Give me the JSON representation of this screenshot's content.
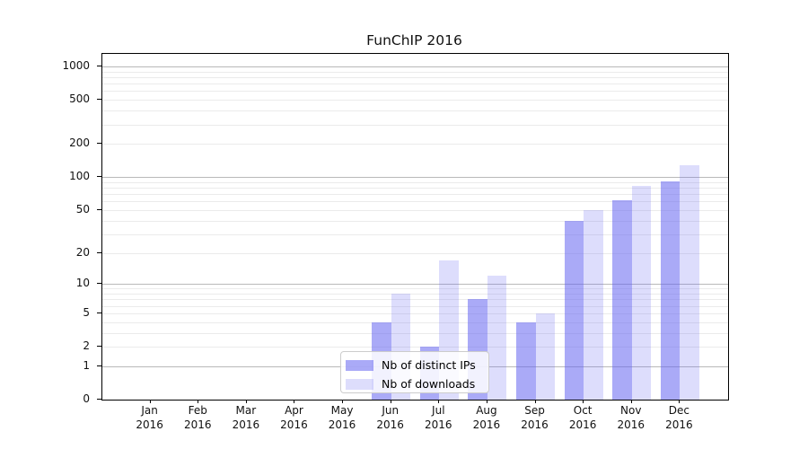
{
  "chart_data": {
    "type": "bar",
    "title": "FunChIP 2016",
    "categories": [
      "Jan",
      "Feb",
      "Mar",
      "Apr",
      "May",
      "Jun",
      "Jul",
      "Aug",
      "Sep",
      "Oct",
      "Nov",
      "Dec"
    ],
    "year": "2016",
    "series": [
      {
        "name": "Nb of distinct IPs",
        "color": "rgba(100,100,240,0.55)",
        "values": [
          0,
          0,
          0,
          0,
          0,
          4,
          2,
          7,
          4,
          40,
          62,
          92
        ]
      },
      {
        "name": "Nb of downloads",
        "color": "rgba(100,100,240,0.22)",
        "values": [
          0,
          0,
          0,
          0,
          0,
          8,
          17,
          12,
          5,
          50,
          83,
          127
        ]
      }
    ],
    "yticks": [
      0,
      1,
      2,
      5,
      10,
      20,
      50,
      100,
      200,
      500,
      1000
    ],
    "minor_ticks": [
      3,
      4,
      6,
      7,
      8,
      9,
      30,
      40,
      60,
      70,
      80,
      90,
      300,
      400,
      600,
      700,
      800,
      900
    ],
    "scale": "log10(1+v)",
    "ylim": [
      0,
      1300
    ],
    "xlabel": "",
    "ylabel": "",
    "grid": "both",
    "legend_position": "lower center",
    "colors": {
      "bar_dark": "#a9abf5",
      "bar_light": "#dbdcf9",
      "grid_major": "#b9b9b9",
      "grid_minor": "#ebebeb",
      "spine": "#000000",
      "legend_border": "#cccccc"
    }
  }
}
